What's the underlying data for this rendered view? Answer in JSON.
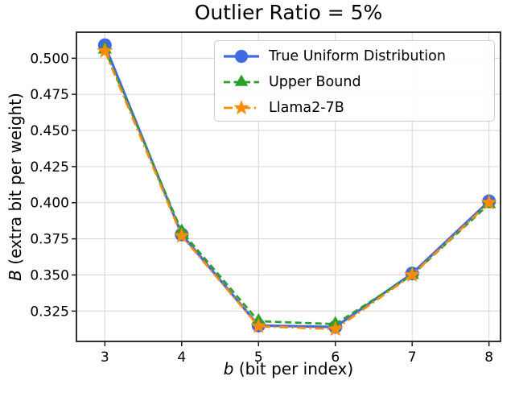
{
  "chart_data": {
    "type": "line",
    "title": "Outlier Ratio = 5%",
    "xlabel_var": "b",
    "xlabel_rest": " (bit per index)",
    "ylabel_var": "B",
    "ylabel_rest": " (extra bit per weight)",
    "x": [
      3,
      4,
      5,
      6,
      7,
      8
    ],
    "xtick_labels": [
      "3",
      "4",
      "5",
      "6",
      "7",
      "8"
    ],
    "yticks": [
      0.325,
      0.35,
      0.375,
      0.4,
      0.425,
      0.45,
      0.475,
      0.5
    ],
    "ytick_labels": [
      "0.325",
      "0.350",
      "0.375",
      "0.400",
      "0.425",
      "0.450",
      "0.475",
      "0.500"
    ],
    "xlim": [
      2.63,
      8.15
    ],
    "ylim": [
      0.304,
      0.518
    ],
    "grid": true,
    "legend_position": "upper right",
    "series": [
      {
        "name": "True Uniform Distribution",
        "color": "#4169e1",
        "linestyle": "solid",
        "marker": "circle",
        "values": [
          0.509,
          0.378,
          0.315,
          0.314,
          0.351,
          0.401
        ]
      },
      {
        "name": "Upper Bound",
        "color": "#2ca02c",
        "linestyle": "dashed",
        "marker": "triangle",
        "values": [
          0.506,
          0.38,
          0.318,
          0.316,
          0.35,
          0.399
        ]
      },
      {
        "name": "Llama2-7B",
        "color": "#ff8c00",
        "linestyle": "dashdot",
        "marker": "star",
        "values": [
          0.505,
          0.377,
          0.3145,
          0.3125,
          0.35,
          0.4
        ]
      }
    ],
    "colors": {
      "grid": "#d9d9d9",
      "spine": "#1a1a1a",
      "text": "#000000"
    }
  }
}
